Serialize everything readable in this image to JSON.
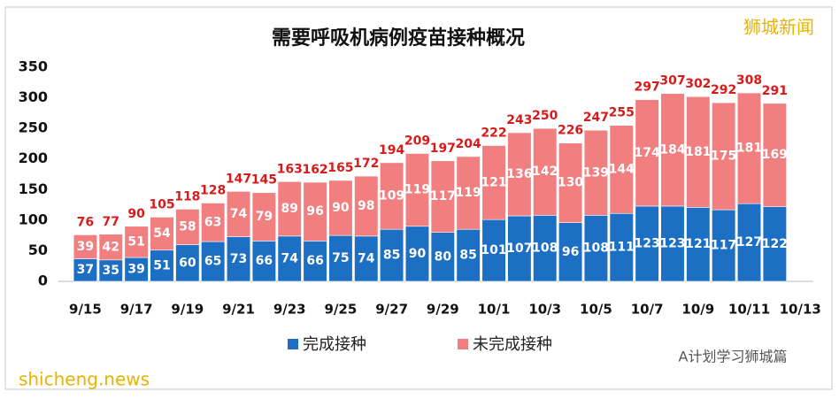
{
  "chart_data": {
    "type": "stacked_bar",
    "title": "需要呼吸机病例疫苗接种概况",
    "categories": [
      "9/15",
      null,
      "9/17",
      null,
      "9/19",
      null,
      "9/21",
      null,
      "9/23",
      null,
      "9/25",
      null,
      "9/27",
      null,
      "9/29",
      null,
      "10/1",
      null,
      "10/3",
      null,
      "10/5",
      null,
      "10/7",
      null,
      "10/9",
      null,
      "10/11",
      null,
      "10/13"
    ],
    "series": [
      {
        "name": "完成接种",
        "color": "#1c6fc2",
        "values": [
          37,
          35,
          39,
          51,
          60,
          65,
          73,
          66,
          74,
          66,
          75,
          74,
          85,
          90,
          80,
          85,
          101,
          107,
          108,
          96,
          108,
          111,
          123,
          123,
          121,
          117,
          127,
          122,
          null
        ]
      },
      {
        "name": "未完成接种",
        "color": "#f17f7f",
        "values": [
          39,
          42,
          51,
          54,
          58,
          63,
          74,
          79,
          89,
          96,
          90,
          98,
          109,
          119,
          117,
          119,
          121,
          136,
          142,
          130,
          139,
          144,
          174,
          184,
          181,
          175,
          181,
          169,
          null
        ]
      }
    ],
    "totals": [
      76,
      77,
      90,
      105,
      118,
      128,
      147,
      145,
      163,
      162,
      165,
      172,
      194,
      209,
      197,
      204,
      222,
      243,
      250,
      226,
      247,
      255,
      297,
      307,
      302,
      292,
      308,
      291,
      null
    ],
    "ylim": [
      0,
      350
    ],
    "yticks": [
      0,
      50,
      100,
      150,
      200,
      250,
      300,
      350
    ],
    "grid": false,
    "watermarks": [
      "狮城新闻",
      "shicheng.news",
      "A计划学习狮城篇"
    ]
  }
}
